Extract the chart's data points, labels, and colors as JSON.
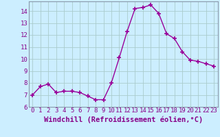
{
  "x": [
    0,
    1,
    2,
    3,
    4,
    5,
    6,
    7,
    8,
    9,
    10,
    11,
    12,
    13,
    14,
    15,
    16,
    17,
    18,
    19,
    20,
    21,
    22,
    23
  ],
  "y": [
    7.0,
    7.7,
    7.9,
    7.2,
    7.3,
    7.3,
    7.2,
    6.9,
    6.6,
    6.6,
    8.0,
    10.1,
    12.3,
    14.2,
    14.3,
    14.5,
    13.8,
    12.1,
    11.7,
    10.6,
    9.9,
    9.8,
    9.6,
    9.4
  ],
  "line_color": "#990099",
  "marker": "+",
  "marker_size": 4,
  "xlabel": "Windchill (Refroidissement éolien,°C)",
  "ylabel": "",
  "title": "",
  "ylim": [
    6,
    14.8
  ],
  "yticks": [
    6,
    7,
    8,
    9,
    10,
    11,
    12,
    13,
    14
  ],
  "xlim": [
    -0.5,
    23.5
  ],
  "xticks": [
    0,
    1,
    2,
    3,
    4,
    5,
    6,
    7,
    8,
    9,
    10,
    11,
    12,
    13,
    14,
    15,
    16,
    17,
    18,
    19,
    20,
    21,
    22,
    23
  ],
  "bg_color": "#cceeff",
  "grid_color": "#aacccc",
  "tick_label_color": "#880088",
  "xlabel_color": "#880088",
  "tick_fontsize": 6.5,
  "xlabel_fontsize": 7.5
}
